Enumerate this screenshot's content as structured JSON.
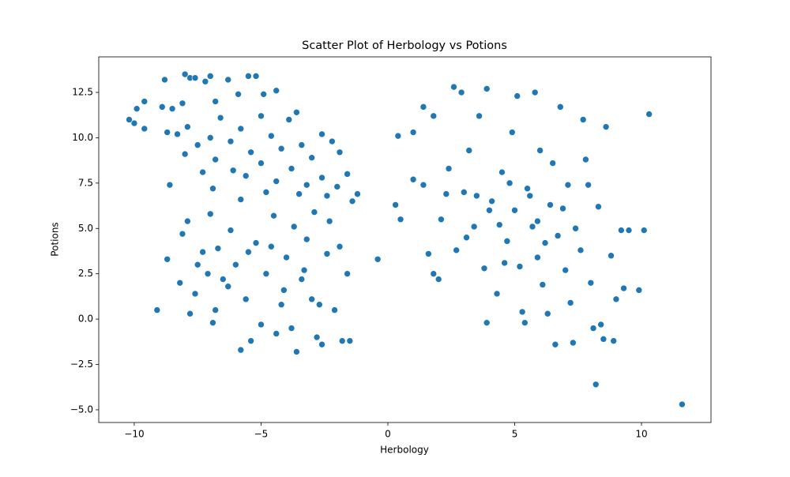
{
  "chart_data": {
    "type": "scatter",
    "title": "Scatter Plot of Herbology vs Potions",
    "xlabel": "Herbology",
    "ylabel": "Potions",
    "color": "#1f77b4",
    "xlim": [
      -11.4,
      12.74
    ],
    "ylim": [
      -5.7,
      14.46
    ],
    "xticks": [
      {
        "value": -10,
        "label": "−10"
      },
      {
        "value": -5,
        "label": "−5"
      },
      0,
      5,
      10
    ],
    "yticks": [
      {
        "value": -5,
        "label": "−5.0"
      },
      {
        "value": -2.5,
        "label": "−2.5"
      },
      {
        "value": 0,
        "label": "0.0"
      },
      2.5,
      {
        "value": 5,
        "label": "5.0"
      },
      7.5,
      {
        "value": 10,
        "label": "10.0"
      },
      12.5
    ],
    "x": [
      -10.2,
      -9.9,
      -9.6,
      -9.6,
      -10.0,
      -8.8,
      -8.9,
      -8.5,
      -8.1,
      -8.0,
      -7.8,
      -7.6,
      -7.2,
      -7.0,
      -6.8,
      -6.3,
      -5.9,
      -5.5,
      -5.2,
      -4.9,
      -4.4,
      -3.6,
      -8.7,
      -8.3,
      -7.9,
      -7.5,
      -8.0,
      -7.0,
      -6.6,
      -6.2,
      -5.8,
      -5.4,
      -5.0,
      -4.6,
      -4.2,
      -3.9,
      -3.4,
      -3.0,
      -2.6,
      -2.2,
      -1.9,
      -1.6,
      -1.2,
      -1.4,
      -2.0,
      -2.6,
      -3.2,
      -3.8,
      -4.4,
      -5.0,
      -5.6,
      -6.1,
      -6.8,
      -7.3,
      -6.9,
      -5.8,
      -4.8,
      -3.5,
      -2.4,
      -8.6,
      -9.1,
      -8.7,
      -8.2,
      -8.1,
      -7.9,
      -7.6,
      -7.3,
      -7.0,
      -6.8,
      -6.5,
      -6.2,
      -6.0,
      -5.8,
      -5.6,
      -5.4,
      -5.2,
      -5.0,
      -4.8,
      -4.5,
      -4.2,
      -4.0,
      -3.8,
      -3.6,
      -3.4,
      -3.2,
      -3.0,
      -2.8,
      -2.6,
      -2.4,
      -2.1,
      -1.8,
      -1.5,
      -1.6,
      -1.9,
      -2.3,
      -2.9,
      -3.7,
      -4.6,
      -5.5,
      -6.3,
      -7.1,
      -7.8,
      -7.5,
      -6.7,
      -4.1,
      -3.3,
      -2.7,
      -0.4,
      -6.9,
      -4.4,
      0.3,
      0.4,
      0.5,
      1.0,
      1.0,
      1.4,
      1.4,
      1.6,
      1.8,
      1.8,
      2.0,
      2.1,
      2.4,
      2.6,
      2.7,
      2.9,
      3.0,
      3.2,
      3.4,
      3.6,
      3.8,
      3.9,
      3.9,
      4.1,
      4.3,
      4.5,
      4.7,
      4.9,
      5.0,
      5.1,
      5.2,
      5.3,
      5.4,
      5.5,
      5.7,
      5.8,
      5.9,
      6.0,
      6.1,
      6.3,
      6.4,
      6.5,
      6.6,
      6.7,
      6.8,
      7.0,
      7.1,
      7.2,
      7.3,
      7.4,
      7.6,
      7.7,
      7.8,
      8.0,
      8.1,
      8.2,
      8.3,
      8.4,
      8.5,
      8.6,
      8.8,
      8.9,
      9.0,
      9.2,
      9.3,
      9.5,
      9.9,
      10.1,
      10.3,
      11.6,
      4.0,
      4.4,
      4.8,
      5.6,
      6.2,
      3.5,
      3.1,
      2.3,
      6.9,
      7.9,
      4.6,
      5.9
    ],
    "y": [
      11.0,
      11.6,
      12.0,
      10.5,
      10.8,
      13.2,
      11.7,
      11.6,
      11.9,
      13.5,
      13.3,
      13.3,
      13.1,
      13.4,
      12.0,
      13.2,
      12.4,
      13.4,
      13.4,
      12.4,
      12.6,
      11.4,
      10.3,
      10.2,
      10.6,
      9.6,
      9.1,
      10.0,
      11.1,
      9.8,
      10.5,
      9.2,
      11.2,
      10.1,
      9.4,
      11.0,
      9.6,
      8.9,
      10.2,
      9.8,
      9.2,
      8.0,
      6.9,
      6.5,
      7.3,
      7.8,
      7.4,
      8.3,
      7.6,
      8.6,
      7.9,
      8.2,
      8.8,
      8.1,
      7.2,
      6.6,
      7.0,
      6.9,
      6.8,
      7.4,
      0.5,
      3.3,
      2.0,
      4.7,
      5.4,
      1.4,
      3.7,
      5.8,
      0.5,
      2.2,
      4.9,
      3.0,
      -1.7,
      1.1,
      -1.2,
      4.2,
      -0.3,
      2.5,
      5.7,
      0.8,
      3.4,
      -0.5,
      -1.8,
      2.2,
      4.4,
      1.1,
      -1.0,
      -1.4,
      3.6,
      0.5,
      -1.2,
      -1.2,
      2.5,
      4.0,
      5.4,
      5.9,
      5.1,
      4.0,
      3.7,
      1.8,
      2.5,
      0.3,
      3.0,
      3.9,
      1.6,
      2.7,
      0.8,
      3.3,
      -0.2,
      -0.8,
      6.3,
      10.1,
      5.5,
      10.3,
      7.7,
      11.7,
      7.4,
      3.6,
      11.2,
      2.5,
      2.2,
      5.5,
      8.3,
      12.8,
      3.8,
      12.5,
      7.0,
      9.3,
      5.1,
      11.2,
      2.8,
      12.7,
      -0.2,
      6.5,
      1.4,
      8.1,
      4.3,
      10.3,
      6.0,
      12.3,
      2.9,
      0.4,
      -0.2,
      7.2,
      5.1,
      12.5,
      3.4,
      9.3,
      1.9,
      0.3,
      6.3,
      8.6,
      -1.4,
      4.6,
      11.7,
      2.7,
      7.4,
      0.9,
      -1.3,
      5.0,
      3.8,
      11.0,
      8.8,
      2.0,
      -0.5,
      -3.6,
      6.2,
      -0.3,
      -1.1,
      10.6,
      3.5,
      -1.2,
      1.1,
      4.9,
      1.7,
      4.9,
      1.6,
      4.9,
      11.3,
      -4.7,
      6.0,
      5.2,
      7.5,
      6.8,
      4.2,
      6.8,
      4.5,
      6.9,
      6.1,
      7.4,
      3.1,
      5.4
    ]
  }
}
